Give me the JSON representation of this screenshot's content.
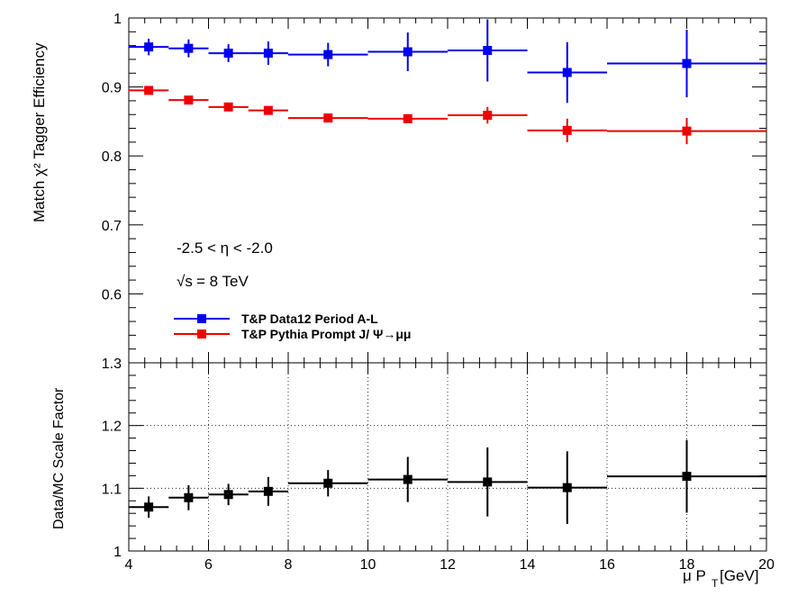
{
  "chart_data": [
    {
      "type": "scatter",
      "panel": "top",
      "ylabel": "Match χ² Tagger Efficiency",
      "ylim": [
        0.5,
        1.0
      ],
      "xlim": [
        4,
        20
      ],
      "y_ticks": [
        {
          "v": 1.0,
          "label": "1"
        },
        {
          "v": 0.9,
          "label": "0.9"
        },
        {
          "v": 0.8,
          "label": "0.8"
        },
        {
          "v": 0.7,
          "label": "0.7"
        },
        {
          "v": 0.6,
          "label": "0.6"
        }
      ],
      "annotations": {
        "eta_range": "-2.5 < η < -2.0",
        "energy_sqrt": "√s",
        "energy_value": "= 8 TeV"
      },
      "legend_placement": "bottom-left",
      "series": [
        {
          "name": "T&P Data12 Period A-L",
          "color": "#0000ee",
          "points": [
            {
              "x": 4.5,
              "xlo": 4,
              "xhi": 5,
              "y": 0.958,
              "yerr": 0.012
            },
            {
              "x": 5.5,
              "xlo": 5,
              "xhi": 6,
              "y": 0.956,
              "yerr": 0.013
            },
            {
              "x": 6.5,
              "xlo": 6,
              "xhi": 7,
              "y": 0.949,
              "yerr": 0.013
            },
            {
              "x": 7.5,
              "xlo": 7,
              "xhi": 8,
              "y": 0.949,
              "yerr": 0.017
            },
            {
              "x": 9,
              "xlo": 8,
              "xhi": 10,
              "y": 0.947,
              "yerr": 0.017
            },
            {
              "x": 11,
              "xlo": 10,
              "xhi": 12,
              "y": 0.951,
              "yerr": 0.028
            },
            {
              "x": 13,
              "xlo": 12,
              "xhi": 14,
              "y": 0.953,
              "yerr": 0.045
            },
            {
              "x": 15,
              "xlo": 14,
              "xhi": 16,
              "y": 0.921,
              "yerr": 0.044
            },
            {
              "x": 18,
              "xlo": 16,
              "xhi": 20,
              "y": 0.934,
              "yerr": 0.049
            }
          ]
        },
        {
          "name": "T&P Pythia Prompt J/  Ψ→μμ",
          "color": "#ee0000",
          "points": [
            {
              "x": 4.5,
              "xlo": 4,
              "xhi": 5,
              "y": 0.895,
              "yerr": 0.003
            },
            {
              "x": 5.5,
              "xlo": 5,
              "xhi": 6,
              "y": 0.881,
              "yerr": 0.003
            },
            {
              "x": 6.5,
              "xlo": 6,
              "xhi": 7,
              "y": 0.871,
              "yerr": 0.003
            },
            {
              "x": 7.5,
              "xlo": 7,
              "xhi": 8,
              "y": 0.866,
              "yerr": 0.004
            },
            {
              "x": 9,
              "xlo": 8,
              "xhi": 10,
              "y": 0.855,
              "yerr": 0.004
            },
            {
              "x": 11,
              "xlo": 10,
              "xhi": 12,
              "y": 0.854,
              "yerr": 0.006
            },
            {
              "x": 13,
              "xlo": 12,
              "xhi": 14,
              "y": 0.859,
              "yerr": 0.012
            },
            {
              "x": 15,
              "xlo": 14,
              "xhi": 16,
              "y": 0.837,
              "yerr": 0.017
            },
            {
              "x": 18,
              "xlo": 16,
              "xhi": 20,
              "y": 0.836,
              "yerr": 0.019
            }
          ]
        }
      ]
    },
    {
      "type": "scatter",
      "panel": "bottom",
      "xlabel_main": "μ P",
      "xlabel_sub": "T",
      "xlabel_unit": " [GeV]",
      "ylabel": "Data/MC Scale Factor",
      "ylim": [
        1.0,
        1.3
      ],
      "xlim": [
        4,
        20
      ],
      "grid": true,
      "x_ticks": [
        {
          "v": 4,
          "label": "4"
        },
        {
          "v": 6,
          "label": "6"
        },
        {
          "v": 8,
          "label": "8"
        },
        {
          "v": 10,
          "label": "10"
        },
        {
          "v": 12,
          "label": "12"
        },
        {
          "v": 14,
          "label": "14"
        },
        {
          "v": 16,
          "label": "16"
        },
        {
          "v": 18,
          "label": "18"
        },
        {
          "v": 20,
          "label": "20"
        }
      ],
      "y_ticks": [
        {
          "v": 1.3,
          "label": "1.3"
        },
        {
          "v": 1.2,
          "label": "1.2"
        },
        {
          "v": 1.1,
          "label": "1.1"
        },
        {
          "v": 1.0,
          "label": "1"
        }
      ],
      "series": [
        {
          "name": "",
          "color": "#000000",
          "points": [
            {
              "x": 4.5,
              "xlo": 4,
              "xhi": 5,
              "y": 1.07,
              "yerr": 0.017
            },
            {
              "x": 5.5,
              "xlo": 5,
              "xhi": 6,
              "y": 1.085,
              "yerr": 0.02
            },
            {
              "x": 6.5,
              "xlo": 6,
              "xhi": 7,
              "y": 1.09,
              "yerr": 0.017
            },
            {
              "x": 7.5,
              "xlo": 7,
              "xhi": 8,
              "y": 1.095,
              "yerr": 0.023
            },
            {
              "x": 9,
              "xlo": 8,
              "xhi": 10,
              "y": 1.108,
              "yerr": 0.021
            },
            {
              "x": 11,
              "xlo": 10,
              "xhi": 12,
              "y": 1.114,
              "yerr": 0.036
            },
            {
              "x": 13,
              "xlo": 12,
              "xhi": 14,
              "y": 1.11,
              "yerr": 0.055
            },
            {
              "x": 15,
              "xlo": 14,
              "xhi": 16,
              "y": 1.101,
              "yerr": 0.058
            },
            {
              "x": 18,
              "xlo": 16,
              "xhi": 20,
              "y": 1.119,
              "yerr": 0.058
            }
          ]
        }
      ]
    }
  ]
}
